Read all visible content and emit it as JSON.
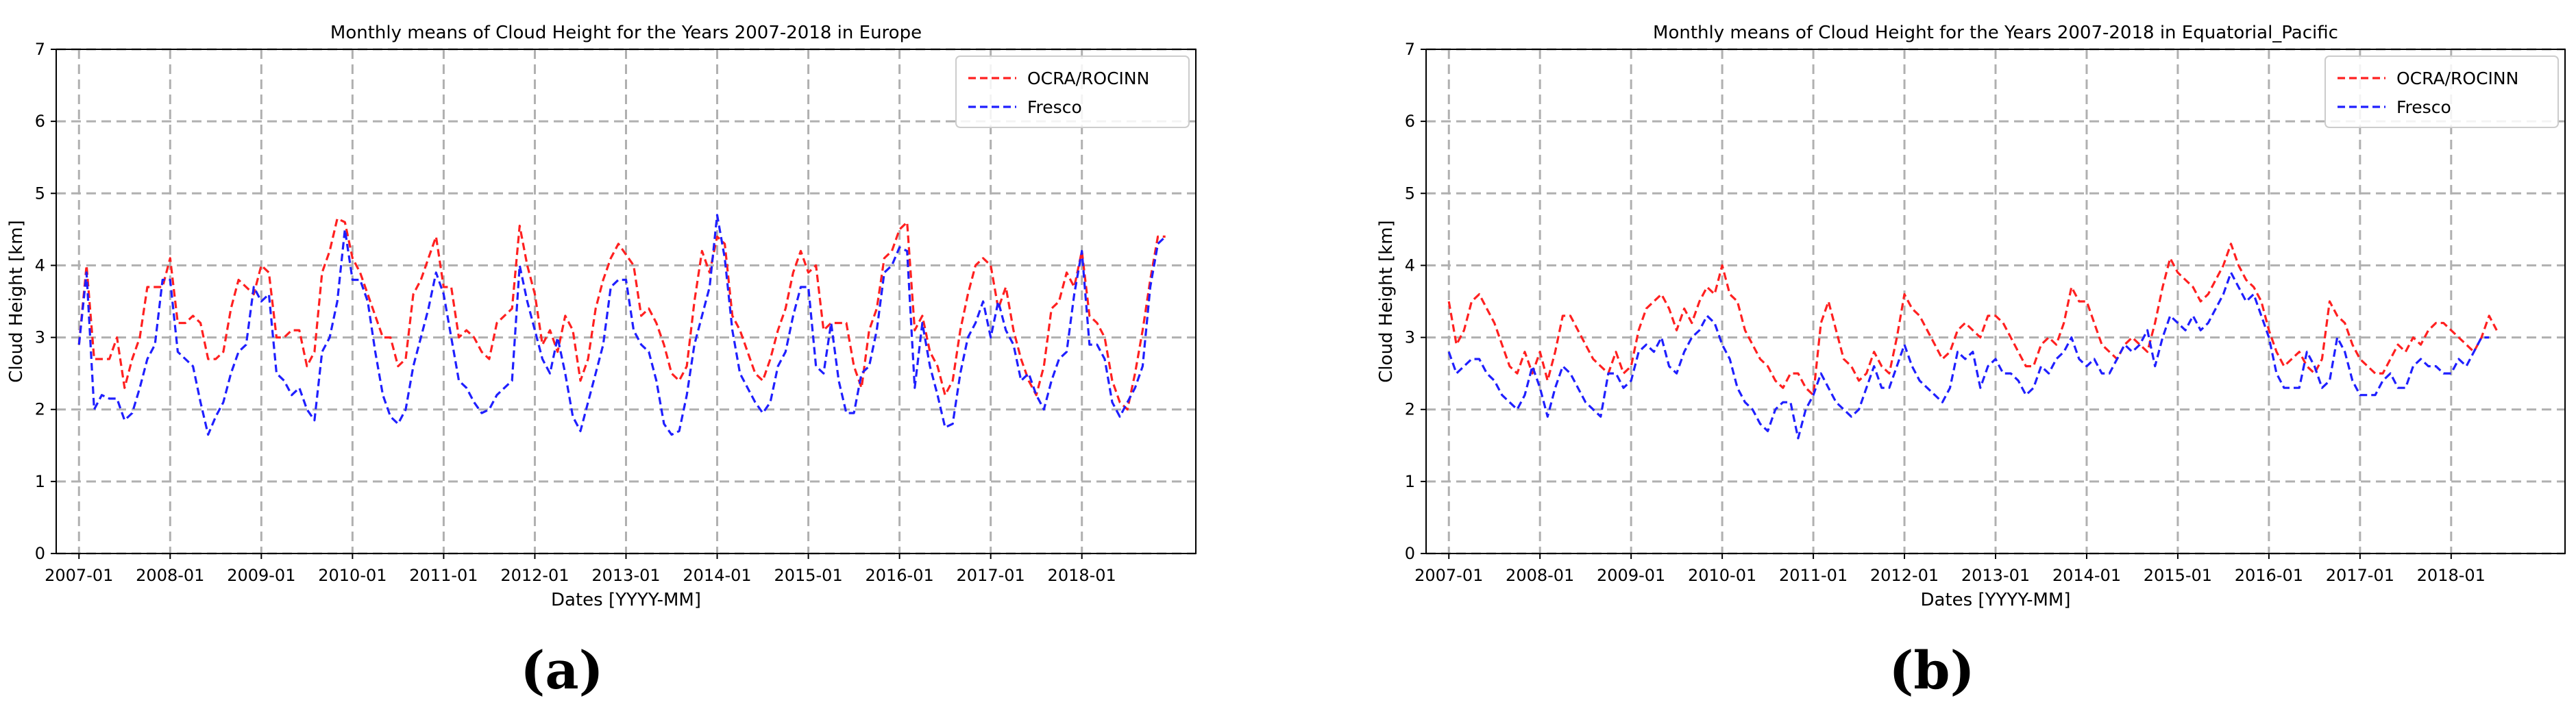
{
  "colors": {
    "ocra": "#ff2020",
    "fresco": "#1f1fff",
    "grid": "#b0b0b0",
    "axis": "#000000"
  },
  "chart_data": [
    {
      "type": "line",
      "panel_label": "(a)",
      "title": "Monthly means of Cloud Height for the Years 2007-2018 in Europe",
      "xlabel": "Dates [YYYY-MM]",
      "ylabel": "Cloud Height [km]",
      "ylim": [
        0,
        7
      ],
      "xlim": [
        -3,
        147
      ],
      "yticks": [
        "0",
        "1",
        "2",
        "3",
        "4",
        "5",
        "6",
        "7"
      ],
      "xticks": [
        {
          "label": "2007-01",
          "at": 0
        },
        {
          "label": "2008-01",
          "at": 12
        },
        {
          "label": "2009-01",
          "at": 24
        },
        {
          "label": "2010-01",
          "at": 36
        },
        {
          "label": "2011-01",
          "at": 48
        },
        {
          "label": "2012-01",
          "at": 60
        },
        {
          "label": "2013-01",
          "at": 72
        },
        {
          "label": "2014-01",
          "at": 84
        },
        {
          "label": "2015-01",
          "at": 96
        },
        {
          "label": "2016-01",
          "at": 108
        },
        {
          "label": "2017-01",
          "at": 120
        },
        {
          "label": "2018-01",
          "at": 132
        }
      ],
      "grid": true,
      "legend_position": "top-right",
      "series": [
        {
          "name": "OCRA/ROCINN",
          "color": "#ff2020",
          "values": [
            2.9,
            4.0,
            2.7,
            2.7,
            2.7,
            3.0,
            2.3,
            2.7,
            3.0,
            3.7,
            3.7,
            3.7,
            4.1,
            3.2,
            3.2,
            3.3,
            3.2,
            2.7,
            2.7,
            2.8,
            3.4,
            3.8,
            3.7,
            3.6,
            4.0,
            3.9,
            3.0,
            3.0,
            3.1,
            3.1,
            2.6,
            2.8,
            3.9,
            4.2,
            4.65,
            4.6,
            4.1,
            3.9,
            3.6,
            3.3,
            3.0,
            3.0,
            2.6,
            2.7,
            3.6,
            3.8,
            4.1,
            4.4,
            3.7,
            3.7,
            3.0,
            3.1,
            3.0,
            2.8,
            2.7,
            3.2,
            3.3,
            3.4,
            4.55,
            4.0,
            3.6,
            2.9,
            3.1,
            2.8,
            3.3,
            3.1,
            2.4,
            2.7,
            3.4,
            3.8,
            4.1,
            4.3,
            4.15,
            4.0,
            3.3,
            3.4,
            3.2,
            2.9,
            2.5,
            2.4,
            2.6,
            3.5,
            4.2,
            3.9,
            4.4,
            4.3,
            3.3,
            3.1,
            2.8,
            2.5,
            2.4,
            2.7,
            3.1,
            3.4,
            3.9,
            4.2,
            3.9,
            4.0,
            3.1,
            3.2,
            3.2,
            3.2,
            2.6,
            2.3,
            3.1,
            3.4,
            4.1,
            4.2,
            4.5,
            4.6,
            3.1,
            3.3,
            2.8,
            2.6,
            2.2,
            2.4,
            3.1,
            3.6,
            4.0,
            4.1,
            4.0,
            3.4,
            3.7,
            3.1,
            2.7,
            2.4,
            2.2,
            2.6,
            3.4,
            3.5,
            3.9,
            3.7,
            4.2,
            3.3,
            3.2,
            3.0,
            2.4,
            2.1,
            2.0,
            2.5,
            3.1,
            3.8,
            4.4,
            4.4
          ]
        },
        {
          "name": "Fresco",
          "color": "#1f1fff",
          "values": [
            2.9,
            3.9,
            2.0,
            2.2,
            2.15,
            2.15,
            1.85,
            1.95,
            2.3,
            2.7,
            2.9,
            3.8,
            3.8,
            2.8,
            2.7,
            2.6,
            2.1,
            1.65,
            1.9,
            2.1,
            2.5,
            2.8,
            2.9,
            3.7,
            3.5,
            3.6,
            2.5,
            2.4,
            2.2,
            2.3,
            2.0,
            1.85,
            2.8,
            3.0,
            3.5,
            4.5,
            3.8,
            3.8,
            3.5,
            2.8,
            2.2,
            1.9,
            1.8,
            2.0,
            2.6,
            3.0,
            3.4,
            3.9,
            3.6,
            3.0,
            2.4,
            2.3,
            2.1,
            1.95,
            2.0,
            2.2,
            2.3,
            2.4,
            4.0,
            3.5,
            3.1,
            2.7,
            2.5,
            3.0,
            2.5,
            1.9,
            1.7,
            2.1,
            2.5,
            2.9,
            3.7,
            3.8,
            3.8,
            3.1,
            2.9,
            2.8,
            2.4,
            1.8,
            1.65,
            1.7,
            2.2,
            2.9,
            3.3,
            3.7,
            4.7,
            4.1,
            3.1,
            2.5,
            2.3,
            2.1,
            1.95,
            2.1,
            2.6,
            2.8,
            3.3,
            3.7,
            3.7,
            2.6,
            2.5,
            3.2,
            2.4,
            1.95,
            1.95,
            2.5,
            2.6,
            3.1,
            3.9,
            4.0,
            4.25,
            4.2,
            2.3,
            3.2,
            2.6,
            2.2,
            1.75,
            1.8,
            2.5,
            3.0,
            3.2,
            3.5,
            3.0,
            3.5,
            3.1,
            2.9,
            2.4,
            2.5,
            2.2,
            2.0,
            2.4,
            2.7,
            2.8,
            3.6,
            4.2,
            2.9,
            2.9,
            2.7,
            2.1,
            1.9,
            2.1,
            2.3,
            2.6,
            3.7,
            4.3,
            4.4
          ]
        }
      ]
    },
    {
      "type": "line",
      "panel_label": "(b)",
      "title": "Monthly means of Cloud Height for the Years 2007-2018 in Equatorial_Pacific",
      "xlabel": "Dates [YYYY-MM]",
      "ylabel": "Cloud Height [km]",
      "ylim": [
        0,
        7
      ],
      "xlim": [
        -3,
        147
      ],
      "yticks": [
        "0",
        "1",
        "2",
        "3",
        "4",
        "5",
        "6",
        "7"
      ],
      "xticks": [
        {
          "label": "2007-01",
          "at": 0
        },
        {
          "label": "2008-01",
          "at": 12
        },
        {
          "label": "2009-01",
          "at": 24
        },
        {
          "label": "2010-01",
          "at": 36
        },
        {
          "label": "2011-01",
          "at": 48
        },
        {
          "label": "2012-01",
          "at": 60
        },
        {
          "label": "2013-01",
          "at": 72
        },
        {
          "label": "2014-01",
          "at": 84
        },
        {
          "label": "2015-01",
          "at": 96
        },
        {
          "label": "2016-01",
          "at": 108
        },
        {
          "label": "2017-01",
          "at": 120
        },
        {
          "label": "2018-01",
          "at": 132
        }
      ],
      "grid": true,
      "legend_position": "top-right",
      "series": [
        {
          "name": "OCRA/ROCINN",
          "color": "#ff2020",
          "values": [
            3.5,
            2.9,
            3.1,
            3.5,
            3.6,
            3.4,
            3.2,
            2.9,
            2.6,
            2.5,
            2.8,
            2.5,
            2.8,
            2.4,
            2.8,
            3.3,
            3.3,
            3.1,
            2.9,
            2.7,
            2.6,
            2.5,
            2.8,
            2.5,
            2.6,
            3.1,
            3.4,
            3.5,
            3.6,
            3.4,
            3.1,
            3.4,
            3.2,
            3.5,
            3.7,
            3.6,
            4.0,
            3.6,
            3.5,
            3.1,
            2.9,
            2.7,
            2.6,
            2.4,
            2.3,
            2.5,
            2.5,
            2.3,
            2.2,
            3.2,
            3.5,
            3.1,
            2.7,
            2.6,
            2.4,
            2.5,
            2.8,
            2.6,
            2.5,
            3.0,
            3.6,
            3.4,
            3.3,
            3.1,
            2.9,
            2.7,
            2.8,
            3.1,
            3.2,
            3.1,
            3.0,
            3.3,
            3.3,
            3.2,
            3.0,
            2.8,
            2.6,
            2.6,
            2.9,
            3.0,
            2.9,
            3.2,
            3.7,
            3.5,
            3.5,
            3.2,
            2.9,
            2.8,
            2.7,
            2.9,
            3.0,
            2.9,
            2.8,
            3.2,
            3.7,
            4.1,
            3.9,
            3.8,
            3.7,
            3.5,
            3.6,
            3.8,
            4.0,
            4.3,
            4.0,
            3.8,
            3.7,
            3.5,
            3.1,
            2.8,
            2.6,
            2.7,
            2.8,
            2.6,
            2.5,
            2.7,
            3.5,
            3.3,
            3.2,
            2.9,
            2.7,
            2.6,
            2.5,
            2.5,
            2.7,
            2.9,
            2.8,
            3.0,
            2.9,
            3.1,
            3.2,
            3.2,
            3.1,
            3.0,
            2.9,
            2.8,
            3.0,
            3.3,
            3.1
          ]
        },
        {
          "name": "Fresco",
          "color": "#1f1fff",
          "values": [
            2.8,
            2.5,
            2.6,
            2.7,
            2.7,
            2.5,
            2.4,
            2.2,
            2.1,
            2.0,
            2.2,
            2.6,
            2.3,
            1.9,
            2.3,
            2.6,
            2.5,
            2.3,
            2.1,
            2.0,
            1.9,
            2.5,
            2.5,
            2.3,
            2.4,
            2.8,
            2.9,
            2.8,
            3.0,
            2.6,
            2.5,
            2.8,
            3.0,
            3.1,
            3.3,
            3.2,
            2.9,
            2.7,
            2.3,
            2.1,
            2.0,
            1.8,
            1.7,
            2.0,
            2.1,
            2.1,
            1.6,
            2.0,
            2.2,
            2.5,
            2.3,
            2.1,
            2.0,
            1.9,
            2.0,
            2.3,
            2.6,
            2.3,
            2.3,
            2.6,
            2.9,
            2.6,
            2.4,
            2.3,
            2.2,
            2.1,
            2.3,
            2.8,
            2.7,
            2.8,
            2.3,
            2.6,
            2.7,
            2.5,
            2.5,
            2.4,
            2.2,
            2.3,
            2.6,
            2.5,
            2.7,
            2.8,
            3.0,
            2.7,
            2.6,
            2.7,
            2.5,
            2.5,
            2.7,
            2.9,
            2.8,
            2.9,
            3.1,
            2.6,
            3.0,
            3.3,
            3.2,
            3.1,
            3.3,
            3.1,
            3.2,
            3.4,
            3.6,
            3.9,
            3.7,
            3.5,
            3.6,
            3.3,
            3.0,
            2.5,
            2.3,
            2.3,
            2.3,
            2.8,
            2.6,
            2.3,
            2.4,
            3.0,
            2.8,
            2.4,
            2.2,
            2.2,
            2.2,
            2.4,
            2.5,
            2.3,
            2.3,
            2.6,
            2.7,
            2.6,
            2.6,
            2.5,
            2.5,
            2.7,
            2.6,
            2.8,
            3.0,
            3.0
          ]
        }
      ]
    }
  ]
}
